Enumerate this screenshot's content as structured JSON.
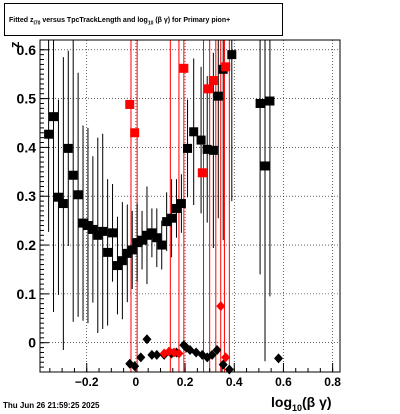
{
  "title": {
    "prefix": "Fitted  z",
    "subscript": "I70",
    "middle": "  versus TpcTrackLength and log",
    "log_base": "10",
    "suffix": "(β  γ) for Primary pion+"
  },
  "footer": "Thu Jun 26 21:59:25 2025",
  "colors": {
    "black": "#000000",
    "red": "#ff0000",
    "grid": "#000000"
  },
  "chart_data": {
    "type": "scatter",
    "xlabel": {
      "main": "log",
      "sub": "10",
      "rest": "(β γ)"
    },
    "ylabel": "z",
    "xlim": [
      -0.39,
      0.83
    ],
    "ylim": [
      -0.06,
      0.62
    ],
    "grid": true,
    "xticks": [
      -0.2,
      0,
      0.2,
      0.4,
      0.6,
      0.8
    ],
    "xtick_labels": [
      "−0.2",
      "0",
      "0.2",
      "0.4",
      "0.6",
      "0.8"
    ],
    "yticks": [
      0,
      0.1,
      0.2,
      0.3,
      0.4,
      0.5,
      0.6
    ],
    "ytick_labels": [
      "0",
      "0.1",
      "0.2",
      "0.3",
      "0.4",
      "0.5",
      "0.6"
    ],
    "series": [
      {
        "marker": "square",
        "color": "#000000",
        "points": [
          {
            "x": -0.355,
            "y": 0.427,
            "yerr": 0.2
          },
          {
            "x": -0.335,
            "y": 0.463,
            "yerr": 0.4
          },
          {
            "x": -0.315,
            "y": 0.298,
            "yerr": 0.2
          },
          {
            "x": -0.295,
            "y": 0.285,
            "yerr": 0.3
          },
          {
            "x": -0.275,
            "y": 0.398,
            "yerr": 0.2
          },
          {
            "x": -0.255,
            "y": 0.343,
            "yerr": 0.3
          },
          {
            "x": -0.235,
            "y": 0.303,
            "yerr": 0.25
          },
          {
            "x": -0.215,
            "y": 0.245,
            "yerr": 0.2
          },
          {
            "x": -0.195,
            "y": 0.24,
            "yerr": 0.2
          },
          {
            "x": -0.175,
            "y": 0.232,
            "yerr": 0.15
          },
          {
            "x": -0.155,
            "y": 0.22,
            "yerr": 0.2
          },
          {
            "x": -0.135,
            "y": 0.228,
            "yerr": 0.2
          },
          {
            "x": -0.115,
            "y": 0.185,
            "yerr": 0.15
          },
          {
            "x": -0.095,
            "y": 0.225,
            "yerr": 0.1
          },
          {
            "x": -0.075,
            "y": 0.158,
            "yerr": 0.1
          },
          {
            "x": -0.055,
            "y": 0.168,
            "yerr": 0.12
          },
          {
            "x": -0.035,
            "y": 0.183,
            "yerr": 0.1
          },
          {
            "x": -0.015,
            "y": 0.19,
            "yerr": 0.08
          },
          {
            "x": 0.005,
            "y": 0.205,
            "yerr": 0.08
          },
          {
            "x": 0.025,
            "y": 0.21,
            "yerr": 0.06
          },
          {
            "x": 0.045,
            "y": 0.22,
            "yerr": 0.1
          },
          {
            "x": 0.065,
            "y": 0.225,
            "yerr": 0.05
          },
          {
            "x": 0.085,
            "y": 0.215,
            "yerr": 0.06
          },
          {
            "x": 0.105,
            "y": 0.2,
            "yerr": 0.05
          },
          {
            "x": 0.125,
            "y": 0.248,
            "yerr": 0.06
          },
          {
            "x": 0.145,
            "y": 0.255,
            "yerr": 0.08
          },
          {
            "x": 0.165,
            "y": 0.275,
            "yerr": 0.06
          },
          {
            "x": 0.185,
            "y": 0.285,
            "yerr": 0.06
          },
          {
            "x": 0.21,
            "y": 0.398,
            "yerr": 0.1
          },
          {
            "x": 0.235,
            "y": 0.432,
            "yerr": 0.15
          },
          {
            "x": 0.265,
            "y": 0.415,
            "yerr": 0.15
          },
          {
            "x": 0.29,
            "y": 0.396,
            "yerr": 0.15
          },
          {
            "x": 0.315,
            "y": 0.394,
            "yerr": 0.2
          },
          {
            "x": 0.335,
            "y": 0.505,
            "yerr": 0.25
          },
          {
            "x": 0.355,
            "y": 0.56,
            "yerr": 0.35
          },
          {
            "x": 0.39,
            "y": 0.59,
            "yerr": 0.3
          },
          {
            "x": 0.505,
            "y": 0.49,
            "yerr": 0.35
          },
          {
            "x": 0.525,
            "y": 0.362,
            "yerr": 0.4
          },
          {
            "x": 0.545,
            "y": 0.495,
            "yerr": 0.4
          }
        ]
      },
      {
        "marker": "square",
        "color": "#ff0000",
        "points": [
          {
            "x": -0.025,
            "y": 0.488
          },
          {
            "x": -0.005,
            "y": 0.43
          },
          {
            "x": 0.195,
            "y": 0.562
          },
          {
            "x": 0.27,
            "y": 0.348
          },
          {
            "x": 0.295,
            "y": 0.52
          },
          {
            "x": 0.315,
            "y": 0.537
          },
          {
            "x": 0.365,
            "y": 0.565
          }
        ]
      },
      {
        "marker": "diamond",
        "color": "#000000",
        "points": [
          {
            "x": -0.025,
            "y": -0.043
          },
          {
            "x": -0.005,
            "y": -0.048
          },
          {
            "x": 0.02,
            "y": -0.03
          },
          {
            "x": 0.045,
            "y": 0.007
          },
          {
            "x": 0.065,
            "y": -0.025
          },
          {
            "x": 0.085,
            "y": -0.025
          },
          {
            "x": 0.115,
            "y": -0.025
          },
          {
            "x": 0.145,
            "y": -0.022
          },
          {
            "x": 0.165,
            "y": -0.02
          },
          {
            "x": 0.195,
            "y": -0.005
          },
          {
            "x": 0.205,
            "y": -0.01
          },
          {
            "x": 0.22,
            "y": -0.015
          },
          {
            "x": 0.245,
            "y": -0.02
          },
          {
            "x": 0.27,
            "y": -0.025
          },
          {
            "x": 0.29,
            "y": -0.03
          },
          {
            "x": 0.31,
            "y": -0.025
          },
          {
            "x": 0.33,
            "y": -0.015
          },
          {
            "x": 0.355,
            "y": -0.045
          },
          {
            "x": 0.38,
            "y": -0.055
          },
          {
            "x": 0.58,
            "y": -0.032
          }
        ]
      },
      {
        "marker": "diamond",
        "color": "#ff0000",
        "points": [
          {
            "x": 0.115,
            "y": -0.022
          },
          {
            "x": 0.135,
            "y": -0.018
          },
          {
            "x": 0.155,
            "y": -0.02
          },
          {
            "x": 0.175,
            "y": -0.022
          },
          {
            "x": 0.345,
            "y": 0.075
          },
          {
            "x": 0.365,
            "y": -0.03
          }
        ]
      }
    ],
    "vertical_lines": {
      "color": "#ff0000",
      "x": [
        -0.02,
        0.005,
        0.14,
        0.175,
        0.195,
        0.275,
        0.3,
        0.325,
        0.345,
        0.36,
        0.38
      ]
    }
  }
}
